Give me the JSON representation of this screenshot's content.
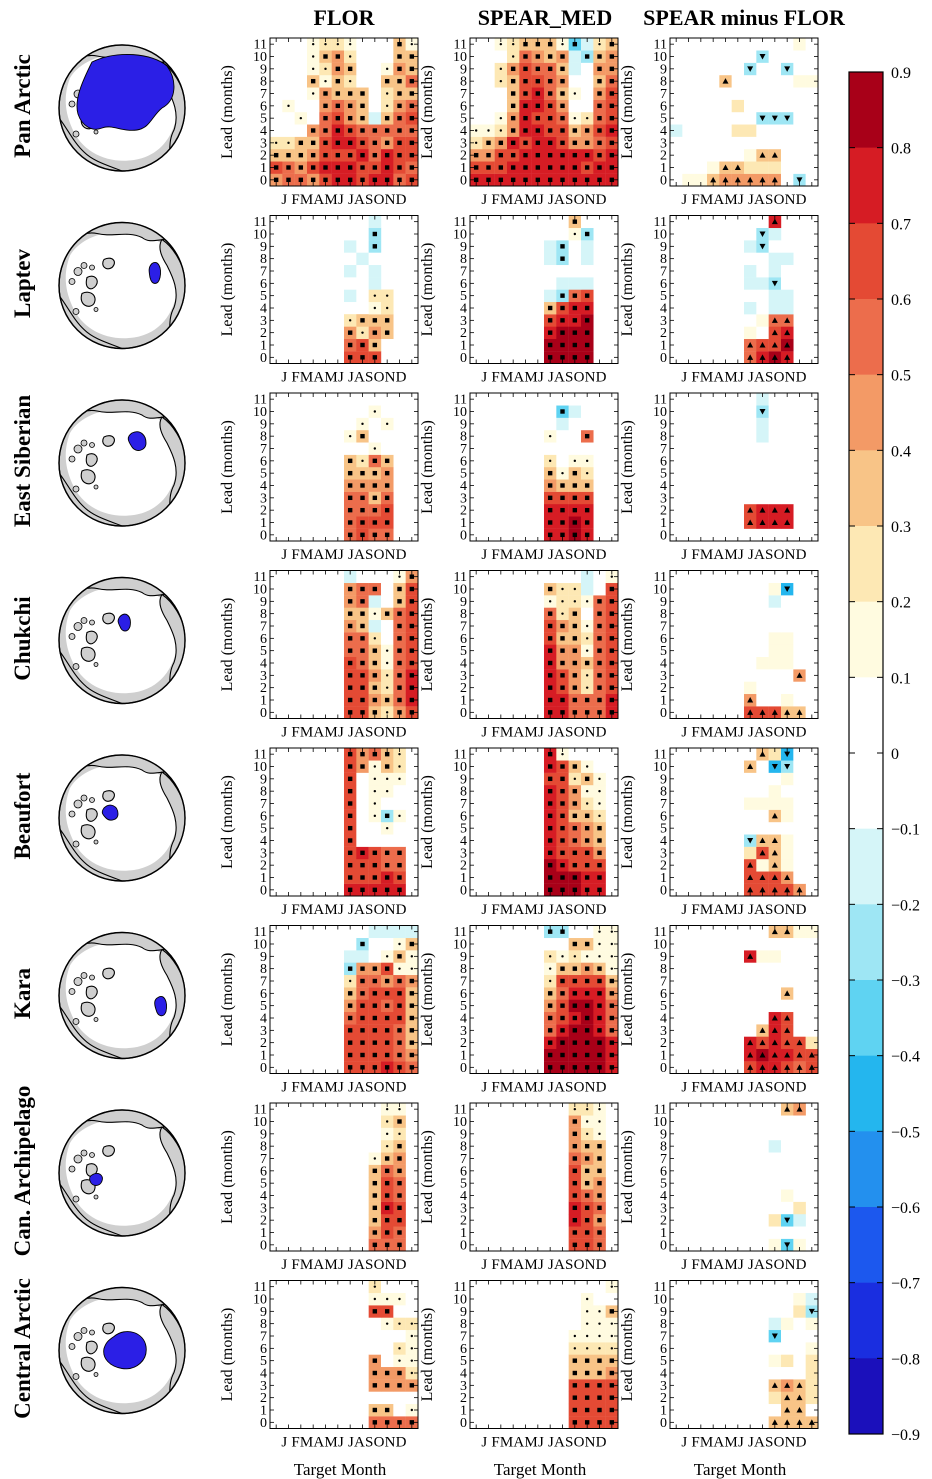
{
  "columns": [
    {
      "id": "flor",
      "title": "FLOR"
    },
    {
      "id": "spear",
      "title": "SPEAR_MED"
    },
    {
      "id": "diff",
      "title": "SPEAR minus FLOR"
    }
  ],
  "axis": {
    "ylabel": "Lead (months)",
    "xlabel": "Target Month",
    "lead_ticks": [
      "0",
      "1",
      "2",
      "3",
      "4",
      "5",
      "6",
      "7",
      "8",
      "9",
      "10",
      "11"
    ],
    "month_ticks": "J FMAMJ JASOND"
  },
  "regions": [
    {
      "name": "Pan Arctic"
    },
    {
      "name": "Laptev"
    },
    {
      "name": "East Siberian"
    },
    {
      "name": "Chukchi"
    },
    {
      "name": "Beaufort"
    },
    {
      "name": "Kara"
    },
    {
      "name": "Can. Archipelago"
    },
    {
      "name": "Central Arctic"
    }
  ],
  "colorbar": {
    "ticks": [
      "0.9",
      "0.8",
      "0.7",
      "0.6",
      "0.5",
      "0.4",
      "0.3",
      "0.2",
      "0.1",
      "0",
      "−0.1",
      "−0.2",
      "−0.3",
      "−0.4",
      "−0.5",
      "−0.6",
      "−0.7",
      "−0.8",
      "−0.9"
    ],
    "colors": [
      "#1b10bb",
      "#1a2ee0",
      "#1c58ee",
      "#2390ee",
      "#24b6ee",
      "#5fd3f2",
      "#9ee6f4",
      "#d5f5f8",
      "#ffffff",
      "#ffffff",
      "#fffbe0",
      "#fde8b4",
      "#f8c487",
      "#f39a66",
      "#ec6d4c",
      "#e44a34",
      "#e0262a",
      "#c80e22",
      "#a80018"
    ]
  },
  "chart_data": {
    "type": "heatmap",
    "x_categories": [
      "J",
      "F",
      "M",
      "A",
      "M",
      "J",
      "J",
      "A",
      "S",
      "O",
      "N",
      "D"
    ],
    "y_categories": [
      "0",
      "1",
      "2",
      "3",
      "4",
      "5",
      "6",
      "7",
      "8",
      "9",
      "10",
      "11"
    ],
    "value_range": [
      -0.9,
      0.9
    ],
    "encoding": "one 12-character string per lead (0 at top); each character is a target month (Jan..Dec). Color level: '.' = no value; a..r = levels from -0.9 to 0.9 in 0.1 steps (i = -0.05..0.05 white band, j = 0.05..0.15). Upper-case = significant cell (marked with square for FLOR/SPEAR_MED, triangle for difference).",
    "panels": {
      "Pan Arctic": {
        "flor": [
          "noonpqqpqqop",
          "ponpqqqppqpo",
          "mmmnpppqoqpp",
          "llmmpqqponpp",
          "jjjnoqpooooo",
          "jjkjopnmhmop",
          "jkjjnonmilno",
          "jjjknmmmjlmm",
          "jjjmkmljjmmo",
          "jjiklnmjjknm",
          "jjjkmnljjjmm",
          "jjjkllkjjjmk"
        ],
        "spear": [
          "qqqqqqqqqqqq",
          "pppqqqqqqpqq",
          "nnppqqqqqqpq",
          "lmnqpqqpnnop",
          "kklnqqppmnpq",
          "jjknqppoklop",
          "jjjmqqpnijop",
          "jjjmpqomkjnp",
          "jjlmpponjjmo",
          "jjlnpoomhjnn",
          "jjjlonmnhgmn",
          "jjklmmmkfhlm"
        ],
        "diff": [
          "ikkmnnnnnjgj",
          "jjjkmmllljjj",
          "jjiijjkmmjji",
          "jjjjjjjjjjjj",
          "hjjjjlljijjj",
          "jjjjjjjgggjj",
          "jjjjjljjjjjj",
          "jjjjjjjjjjjj",
          "jjjjmjjjjjkk",
          "jjjjjjgjjgjj",
          "jjjjjjjgjjjj",
          "jjjjjjijjjkj"
        ]
      },
      "Laptev": {
        "flor": [
          "......ppp...",
          "......opm...",
          "......nlnm..",
          "......lmmm..",
          "........kl..",
          "......hjll..",
          "......ijh...",
          "......hjh...",
          "......jhij..",
          "......hjg...",
          "......iig...",
          "......jjh..."
        ],
        "spear": [
          "......rrrr..",
          "......rrrr..",
          "......qrrr..",
          "......pqqr..",
          "......mpqq..",
          "......hgop..",
          "......ihhh..",
          "......iiii..",
          "......hgih..",
          "......hgih..",
          "......jjkg..",
          "......jjmi.."
        ],
        "diff": [
          "......oqrq..",
          "......oppr..",
          "......kjpq..",
          "......jkoo..",
          "......hjhh..",
          "......ijhh..",
          "......hhgi..",
          "......hjhi..",
          "......ijhh..",
          "......hgji..",
          "......igh...",
          "......iiq..."
        ]
      },
      "East Siberian": {
        "flor": [
          "......opoo..",
          "......oppp..",
          "......ooop..",
          "......oomo..",
          "......nnnn..",
          "......mmmn..",
          "......mlom..",
          "......ijki..",
          "......kmji..",
          "......jkjk..",
          "......jjkj..",
          "......jjjj.."
        ],
        "spear": [
          "......qqrq..",
          "......qqrq..",
          "......qqqq..",
          "......pppp..",
          "......nmmm..",
          "......mkml..",
          "......ljkk..",
          "......jjjj..",
          "......kjjo..",
          "......jhjj..",
          "......jfhj..",
          "......jjjj.."
        ],
        "diff": [
          "......jjjj..",
          "......pqqq..",
          "......pqqq..",
          "......jjjj..",
          "......jjjj..",
          "......jjjj..",
          "......jjjj..",
          "......jjjj..",
          "......jhij..",
          "......jhjj..",
          "......jgjj..",
          "......jhjj.."
        ]
      },
      "Chukchi": {
        "flor": [
          "......ppmlnp",
          "......ppnmoq",
          "......ppmloq",
          "......ppnloq",
          "......pomkop",
          "......oomkop",
          "......ooliop",
          "......nmhiop",
          "......mmkmop",
          "......nohjmp",
          "......noojmp",
          "......hiijkn"
        ],
        "spear": [
          "......qqoooq",
          "......qqoooq",
          "......qpnlop",
          "......qpnlop",
          "......qnnmop",
          "......qnnkop",
          "......pmmlop",
          "......pnmkop",
          "......olmjop",
          "......kllkop",
          "......mllhip",
          "......jjihjk"
        ],
        "diff": [
          "......pppmmj",
          "......nijkjj",
          "......kjjjjj",
          "......jjjjnj",
          "......jkkkij",
          "......ijkkij",
          "......jjkkij",
          "......jjjjij",
          "......jijjij",
          "......jjhjij",
          "......jjkejj",
          "......jjjjjj"
        ]
      },
      "Beaufort": {
        "flor": [
          "......qqqqq.",
          "......pppqp.",
          "......pppoo.",
          "......pqpoo.",
          "......pjjjj.",
          "......pjjkj.",
          "......pjkgk.",
          "......pjkjj.",
          "......pjkkj.",
          "......pjkkk.",
          "......pnkml.",
          "......pnoml."
        ],
        "spear": [
          "......rrrqq.",
          "......rrrqq.",
          "......rqppp.",
          "......qpppn.",
          "......qponm.",
          "......qponm.",
          "......qpmml.",
          "......qpnlk.",
          "......qpnkk.",
          "......pplmk.",
          "......qpmkj.",
          "......qkjjj."
        ],
        "diff": [
          "......ppppn.",
          "......pppnj.",
          "......pkmkj.",
          "......lpmkj.",
          "......gmmkj.",
          "......jjjjj.",
          "......ijmkj.",
          "......kkkkj.",
          "......jjkjj.",
          "......jjjkj.",
          "......mjegj.",
          "......jmlej."
        ]
      },
      "Kara": {
        "flor": [
          "......pppqpo",
          "......ppppon",
          "......ppppom",
          "......ppppom",
          "......oppppm",
          "......nppopm",
          "......mopppm",
          "......loonon",
          "......gnnpkk",
          "......hhjkmk",
          "......jgjjkm",
          "......jjhhhh"
        ],
        "spear": [
          "......rrrrrq",
          "......rrrrrq",
          "......qrrrrq",
          "......oqrrqo",
          "......opqrqo",
          "......nprrqo",
          "......moqqqn",
          "......lppppm",
          "......kmmnmk",
          "......lklkkk",
          "......jjmmkk",
          "......ggjjkk"
        ],
        "diff": [
          "......pqqpop",
          "......qrqqpp",
          "......qpqppl",
          "......jmqpjj",
          "......jjqpjj",
          "......jjjjjj",
          "......jjjmjj",
          "......jjjjjj",
          "......jjjjjj",
          "......qkkjjj",
          "......jjjjjj",
          "......jjmmkk"
        ]
      },
      "Can. Archipelago": {
        "flor": [
          "........ooo.",
          "........npo.",
          "........mpp.",
          "........mqp.",
          "........mpo.",
          "........mpo.",
          "........mon.",
          "........kmn.",
          "........jlm.",
          "........jkl.",
          "........jlm.",
          "........jkk."
        ],
        "spear": [
          "........ppo.",
          "........ppo.",
          "........qpn.",
          "........qpo.",
          "........pon.",
          "........pmn.",
          "........pmm.",
          "........onm.",
          "........nmm.",
          "........nlk.",
          "........nkk.",
          "........llk."
        ],
        "diff": [
          "........kfk.",
          "........jjj.",
          "........lfh.",
          "........jjl.",
          "........jkj.",
          "........jjj.",
          "........jjj.",
          "........jjj.",
          "........hjj.",
          "........jjj.",
          "........jjj.",
          "........jmn."
        ]
      },
      "Central Arctic": {
        "flor": [
          "........oooo",
          "........mmjk",
          "........jjjj",
          "........nnnn",
          "........nnnl",
          "........njkk",
          "........jjlk",
          "........jjjk",
          "........jkll",
          "........ppjj",
          "........kkkj",
          "........ljjj"
        ],
        "spear": [
          "........pppp",
          "........pppp",
          "........pppp",
          "........pppp",
          "........mmmn",
          "........mmmm",
          "........llll",
          "........kkkk",
          "........jkkk",
          "........jkkm",
          "........jkjj",
          "........jjjk"
        ],
        "diff": [
          "........mmmm",
          "........jmmj",
          "........lmml",
          "........mnml",
          "........jjjl",
          "........kljl",
          "........jjjk",
          "........fjjj",
          "........hkjk",
          "........jjlg",
          "........jjkh",
          "........jjjj"
        ]
      }
    }
  }
}
